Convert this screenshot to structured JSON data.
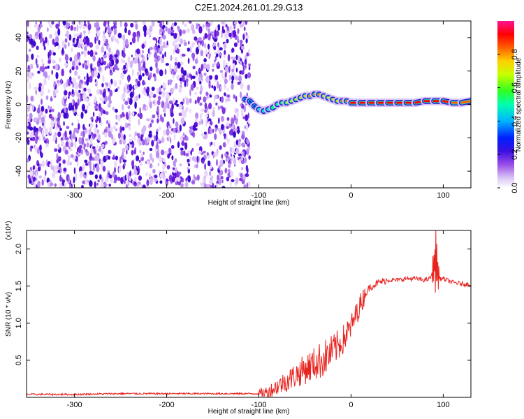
{
  "title": "C2E1.2024.261.01.29.G13",
  "chart_data": [
    {
      "type": "heatmap",
      "xlabel": "Height of straight line (km)",
      "ylabel": "Frequency (Hz)",
      "xlim": [
        -352,
        130
      ],
      "ylim": [
        -50,
        50
      ],
      "x_ticks": [
        -300,
        -200,
        -100,
        0,
        100
      ],
      "x_tick_labels": [
        "-300",
        "-200",
        "-100",
        "0",
        "100"
      ],
      "y_ticks": [
        -40,
        -20,
        0,
        20,
        40
      ],
      "y_tick_labels": [
        "-40",
        "-20",
        "0",
        "20",
        "40"
      ],
      "colorbar": {
        "label": "Normalized spectral amplitude",
        "range": [
          0,
          1
        ],
        "ticks": [
          0.0,
          0.2,
          0.4,
          0.6,
          0.8
        ],
        "tick_labels": [
          "0.0",
          "0.2",
          "0.4",
          "0.6",
          "0.8"
        ],
        "colors": [
          "#ffffff",
          "#c8a8f0",
          "#8a2be2",
          "#4b0bd8",
          "#0000ff",
          "#00c8ff",
          "#00ff80",
          "#80ff00",
          "#ffff00",
          "#ff8000",
          "#ff0000",
          "#ff1a8c"
        ]
      },
      "noise_region": {
        "x_range": [
          -352,
          -110
        ],
        "y_range": [
          -50,
          50
        ],
        "amplitude": "low",
        "color": "violet"
      },
      "signal_ridge": {
        "x": [
          -115,
          -110,
          -105,
          -100,
          -95,
          -90,
          -85,
          -80,
          -75,
          -70,
          -65,
          -60,
          -55,
          -50,
          -45,
          -40,
          -35,
          -30,
          -25,
          -20,
          -15,
          -10,
          -5,
          0,
          10,
          20,
          30,
          40,
          50,
          60,
          70,
          80,
          90,
          100,
          110,
          120,
          130
        ],
        "y": [
          3,
          2,
          -1,
          -3,
          -4,
          -3,
          -2,
          0,
          1,
          1,
          2,
          3,
          4,
          5,
          5,
          6,
          6,
          5,
          4,
          3,
          2,
          2,
          2,
          1,
          1,
          1,
          1,
          1,
          1,
          1,
          1,
          2,
          2,
          2,
          1,
          1,
          2
        ],
        "amplitude": [
          0.3,
          0.35,
          0.4,
          0.45,
          0.5,
          0.5,
          0.55,
          0.6,
          0.6,
          0.65,
          0.7,
          0.7,
          0.75,
          0.8,
          0.85,
          0.9,
          0.9,
          0.85,
          0.8,
          0.75,
          0.8,
          0.85,
          0.9,
          0.95,
          0.95,
          0.95,
          0.95,
          0.95,
          0.95,
          0.95,
          0.95,
          0.95,
          0.95,
          0.95,
          0.95,
          0.9,
          0.85
        ]
      }
    },
    {
      "type": "line",
      "xlabel": "Height of straight line (km)",
      "ylabel": "SNR (10 * v/v)",
      "y_multiplier": "(x10⁴)",
      "xlim": [
        -352,
        130
      ],
      "ylim": [
        0,
        2.25
      ],
      "x_ticks": [
        -300,
        -200,
        -100,
        0,
        100
      ],
      "x_tick_labels": [
        "-300",
        "-200",
        "-100",
        "0",
        "100"
      ],
      "y_ticks": [
        0.5,
        1.0,
        1.5,
        2.0
      ],
      "y_tick_labels": [
        "0.5",
        "1.0",
        "1.5",
        "2.0"
      ],
      "series": [
        {
          "color": "#e8231f",
          "x": [
            -352,
            -300,
            -250,
            -200,
            -150,
            -110,
            -100,
            -90,
            -80,
            -70,
            -60,
            -50,
            -40,
            -30,
            -20,
            -10,
            -5,
            0,
            5,
            10,
            15,
            20,
            30,
            40,
            50,
            60,
            70,
            80,
            85,
            90,
            92,
            95,
            100,
            110,
            120,
            130
          ],
          "y": [
            0.04,
            0.04,
            0.05,
            0.05,
            0.05,
            0.05,
            0.05,
            0.07,
            0.15,
            0.22,
            0.3,
            0.38,
            0.45,
            0.52,
            0.62,
            0.75,
            0.85,
            0.95,
            1.1,
            1.25,
            1.38,
            1.48,
            1.55,
            1.58,
            1.58,
            1.6,
            1.6,
            1.58,
            1.6,
            1.7,
            2.25,
            1.6,
            1.6,
            1.55,
            1.53,
            1.52
          ]
        }
      ]
    }
  ]
}
